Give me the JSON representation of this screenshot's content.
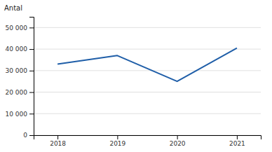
{
  "chart_data": {
    "type": "line",
    "ylabel": "Antal",
    "x": [
      2018,
      2019,
      2020,
      2021
    ],
    "values": [
      33000,
      37000,
      25000,
      40500
    ],
    "color": "#1f5ea8",
    "xlim": [
      2017.6,
      2021.4
    ],
    "xticks": [
      2018,
      2019,
      2020,
      2021
    ],
    "ylim": [
      0,
      55000
    ],
    "yticks": [
      0,
      {
        "value": 10000,
        "label": "10 000"
      },
      {
        "value": 20000,
        "label": "20 000"
      },
      {
        "value": 30000,
        "label": "30 000"
      },
      {
        "value": 40000,
        "label": "40 000"
      },
      {
        "value": 50000,
        "label": "50 000"
      }
    ],
    "grid": "y"
  }
}
